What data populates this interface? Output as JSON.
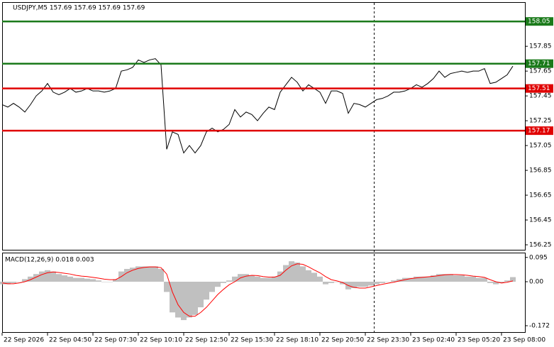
{
  "chart_data": [
    {
      "type": "line",
      "title": "USDJPY,M5  157.69 157.69 157.69 157.69",
      "color": "#000000",
      "categories": [
        "22 Sep 2026",
        null,
        null,
        null,
        null,
        null,
        null,
        null,
        "22 Sep 04:50",
        null,
        null,
        null,
        null,
        null,
        null,
        null,
        "22 Sep 07:30",
        null,
        null,
        null,
        null,
        null,
        null,
        null,
        "22 Sep 10:10",
        null,
        null,
        null,
        null,
        null,
        null,
        null,
        "22 Sep 12:50",
        null,
        null,
        null,
        null,
        null,
        null,
        null,
        "22 Sep 15:30",
        null,
        null,
        null,
        null,
        null,
        null,
        null,
        "22 Sep 18:10",
        null,
        null,
        null,
        null,
        null,
        null,
        null,
        "22 Sep 20:50",
        null,
        null,
        null,
        null,
        null,
        null,
        null,
        "22 Sep 23:30",
        null,
        null,
        null,
        null,
        null,
        null,
        null,
        "23 Sep 02:40",
        null,
        null,
        null,
        null,
        null,
        null,
        null,
        "23 Sep 05:20",
        null,
        null,
        null,
        null,
        null,
        null,
        null,
        "23 Sep 08:00",
        null,
        null
      ],
      "values": [
        157.38,
        157.36,
        157.39,
        157.36,
        157.32,
        157.38,
        157.45,
        157.49,
        157.55,
        157.48,
        157.46,
        157.48,
        157.51,
        157.48,
        157.49,
        157.51,
        157.49,
        157.49,
        157.48,
        157.49,
        157.51,
        157.65,
        157.66,
        157.68,
        157.74,
        157.72,
        157.74,
        157.75,
        157.7,
        157.02,
        157.16,
        157.14,
        156.99,
        157.05,
        156.99,
        157.05,
        157.16,
        157.19,
        157.16,
        157.18,
        157.22,
        157.34,
        157.28,
        157.32,
        157.3,
        157.25,
        157.31,
        157.36,
        157.34,
        157.48,
        157.54,
        157.6,
        157.56,
        157.49,
        157.54,
        157.51,
        157.48,
        157.39,
        157.49,
        157.49,
        157.47,
        157.31,
        157.39,
        157.38,
        157.36,
        157.39,
        157.42,
        157.43,
        157.45,
        157.48,
        157.48,
        157.49,
        157.51,
        157.54,
        157.52,
        157.55,
        157.59,
        157.65,
        157.6,
        157.63,
        157.64,
        157.65,
        157.64,
        157.65,
        157.65,
        157.67,
        157.55,
        157.56,
        157.59,
        157.62,
        157.69
      ],
      "ylim": [
        156.21,
        158.2
      ],
      "yticks": [
        157.85,
        157.65,
        157.45,
        157.25,
        157.05,
        156.85,
        156.65,
        156.45,
        156.25
      ],
      "levels": [
        {
          "value": 158.05,
          "color": "#1a7a1a"
        },
        {
          "value": 157.71,
          "color": "#1a7a1a"
        },
        {
          "value": 157.51,
          "color": "#e00000"
        },
        {
          "value": 157.17,
          "color": "#e00000"
        }
      ],
      "grid": false
    },
    {
      "type": "macd",
      "title": "MACD(12,26,9) 0.018 0.003",
      "series": [
        {
          "color": "#c0c0c0",
          "values": [
            -0.01,
            -0.01,
            -0.005,
            0.0,
            0.01,
            0.02,
            0.03,
            0.04,
            0.045,
            0.04,
            0.03,
            0.025,
            0.02,
            0.015,
            0.015,
            0.012,
            0.01,
            0.005,
            0.0,
            0.0,
            0.01,
            0.04,
            0.05,
            0.055,
            0.06,
            0.06,
            0.06,
            0.06,
            0.05,
            -0.04,
            -0.12,
            -0.14,
            -0.15,
            -0.14,
            -0.13,
            -0.1,
            -0.07,
            -0.04,
            -0.02,
            -0.005,
            0.005,
            0.02,
            0.03,
            0.03,
            0.025,
            0.02,
            0.015,
            0.015,
            0.02,
            0.04,
            0.065,
            0.08,
            0.075,
            0.06,
            0.045,
            0.035,
            0.02,
            -0.01,
            -0.005,
            0.0,
            -0.01,
            -0.03,
            -0.025,
            -0.02,
            -0.02,
            -0.015,
            -0.01,
            -0.005,
            0.0,
            0.005,
            0.01,
            0.015,
            0.015,
            0.02,
            0.02,
            0.02,
            0.025,
            0.03,
            0.03,
            0.03,
            0.025,
            0.025,
            0.02,
            0.02,
            0.015,
            0.015,
            -0.005,
            -0.01,
            -0.005,
            0.005,
            0.018
          ]
        },
        {
          "color": "#ff0000",
          "values": [
            -0.005,
            -0.008,
            -0.008,
            -0.005,
            0.0,
            0.008,
            0.018,
            0.028,
            0.035,
            0.038,
            0.036,
            0.033,
            0.03,
            0.025,
            0.022,
            0.02,
            0.017,
            0.014,
            0.01,
            0.008,
            0.008,
            0.02,
            0.035,
            0.045,
            0.052,
            0.056,
            0.058,
            0.058,
            0.055,
            0.03,
            -0.04,
            -0.09,
            -0.12,
            -0.135,
            -0.135,
            -0.12,
            -0.1,
            -0.075,
            -0.05,
            -0.03,
            -0.012,
            0.0,
            0.015,
            0.022,
            0.025,
            0.024,
            0.02,
            0.018,
            0.018,
            0.025,
            0.045,
            0.062,
            0.07,
            0.068,
            0.058,
            0.046,
            0.035,
            0.02,
            0.008,
            0.003,
            -0.003,
            -0.015,
            -0.022,
            -0.025,
            -0.025,
            -0.02,
            -0.015,
            -0.01,
            -0.006,
            -0.002,
            0.003,
            0.008,
            0.012,
            0.015,
            0.017,
            0.019,
            0.021,
            0.024,
            0.027,
            0.028,
            0.028,
            0.027,
            0.025,
            0.022,
            0.02,
            0.017,
            0.008,
            0.0,
            -0.005,
            -0.002,
            0.003
          ]
        }
      ],
      "ylim": [
        -0.197,
        0.111
      ],
      "yticks": [
        0.095,
        {
          "value": 0,
          "label": "0.00"
        },
        -0.172
      ]
    }
  ]
}
